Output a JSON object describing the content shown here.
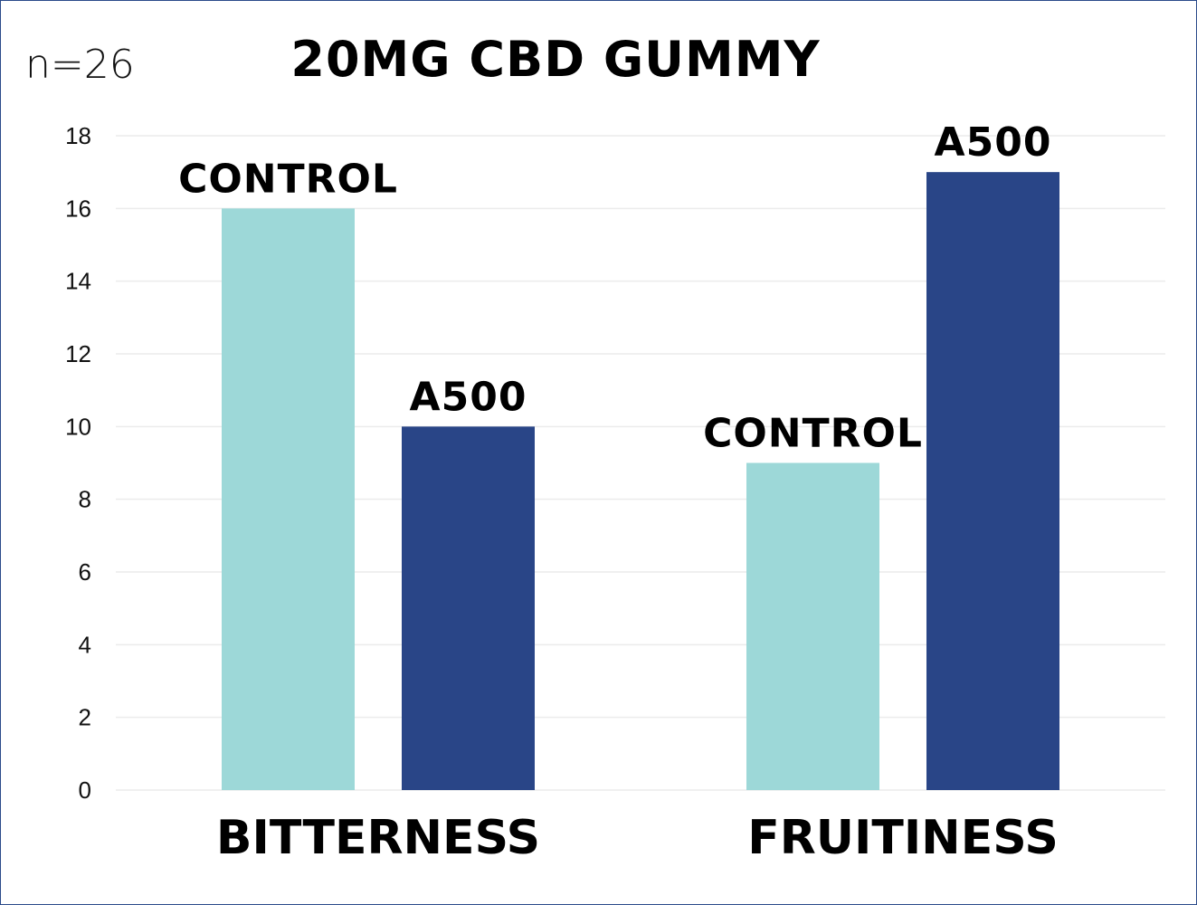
{
  "sample_note": "n=26",
  "chart_data": {
    "type": "bar",
    "title": "20MG CBD GUMMY",
    "categories": [
      "BITTERNESS",
      "FRUITINESS"
    ],
    "series": [
      {
        "name": "CONTROL",
        "color": "#9dd8d8",
        "values": [
          16,
          9
        ],
        "data_labels": [
          "CONTROL",
          "CONTROL"
        ]
      },
      {
        "name": "A500",
        "color": "#294587",
        "values": [
          10,
          17
        ],
        "data_labels": [
          "A500",
          "A500"
        ]
      }
    ],
    "ylim": [
      0,
      18
    ],
    "yticks": [
      0,
      2,
      4,
      6,
      8,
      10,
      12,
      14,
      16,
      18
    ],
    "grid": true,
    "legend": "none",
    "xlabel": "",
    "ylabel": ""
  }
}
